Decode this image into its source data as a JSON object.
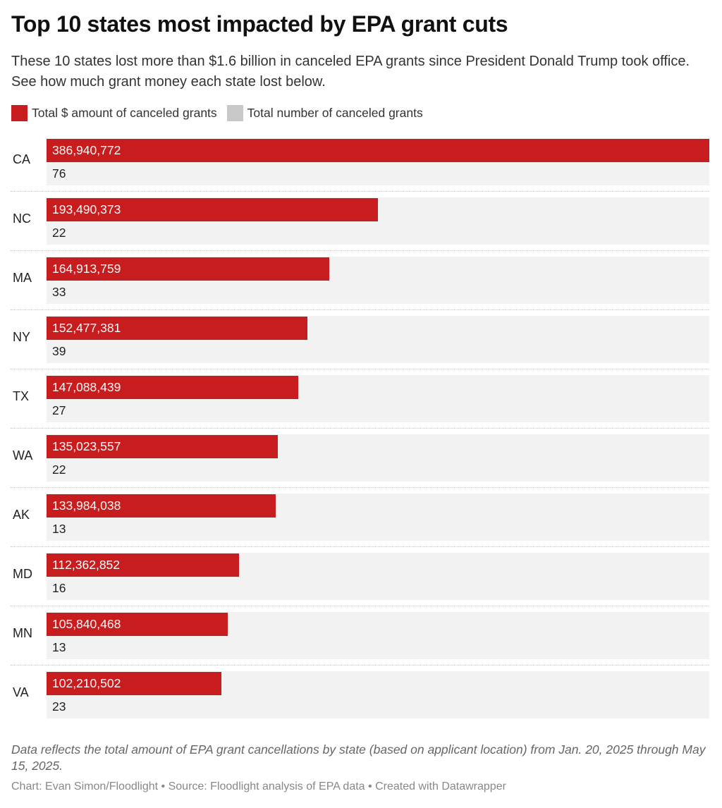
{
  "header": {
    "title": "Top 10 states most impacted by EPA grant cuts",
    "description": "These 10 states lost more than $1.6 billion in canceled EPA grants since President Donald Trump took office. See how much grant money each state lost below."
  },
  "legend": [
    {
      "label": "Total $ amount of canceled grants",
      "color": "#c81d1e"
    },
    {
      "label": "Total number of canceled grants",
      "color": "#c8c8c8"
    }
  ],
  "chart_data": {
    "type": "bar",
    "orientation": "horizontal",
    "title": "Top 10 states most impacted by EPA grant cuts",
    "categories": [
      "CA",
      "NC",
      "MA",
      "NY",
      "TX",
      "WA",
      "AK",
      "MD",
      "MN",
      "VA"
    ],
    "series": [
      {
        "name": "Total $ amount of canceled grants",
        "color": "#c81d1e",
        "values": [
          386940772,
          193490373,
          164913759,
          152477381,
          147088439,
          135023557,
          133984038,
          112362852,
          105840468,
          102210502
        ],
        "labels": [
          "386,940,772",
          "193,490,373",
          "164,913,759",
          "152,477,381",
          "147,088,439",
          "135,023,557",
          "133,984,038",
          "112,362,852",
          "105,840,468",
          "102,210,502"
        ]
      },
      {
        "name": "Total number of canceled grants",
        "color": "#c8c8c8",
        "values": [
          76,
          22,
          33,
          39,
          27,
          22,
          13,
          16,
          13,
          23
        ],
        "labels": [
          "76",
          "22",
          "33",
          "39",
          "27",
          "22",
          "13",
          "16",
          "13",
          "23"
        ]
      }
    ],
    "xlim": [
      0,
      386940772
    ],
    "grid": false,
    "legend_position": "top-left"
  },
  "footer": {
    "notes": "Data reflects the total amount of EPA grant cancellations by state (based on applicant location) from Jan. 20, 2025 through May 15, 2025.",
    "byline": "Chart: Evan Simon/Floodlight • Source: Floodlight analysis of EPA data • Created with Datawrapper"
  }
}
